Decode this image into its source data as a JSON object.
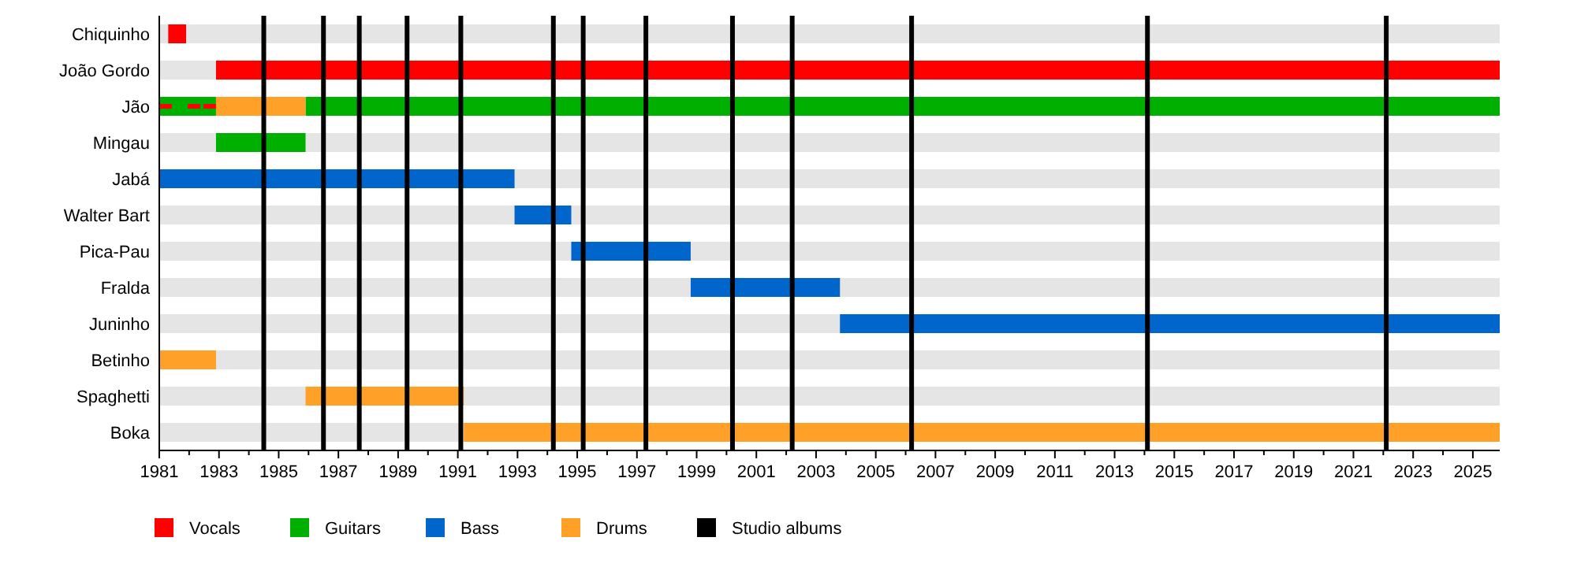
{
  "chart_data": {
    "type": "bar",
    "orientation": "horizontal",
    "categories": [
      "Chiquinho",
      "João Gordo",
      "Jão",
      "Mingau",
      "Jabá",
      "Walter Bart",
      "Pica-Pau",
      "Fralda",
      "Juninho",
      "Betinho",
      "Spaghetti",
      "Boka"
    ],
    "series": [
      {
        "name": "Vocals",
        "color": "#ff0000",
        "values": [
          0.6,
          43.0,
          null,
          null,
          null,
          null,
          null,
          null,
          null,
          null,
          null,
          null
        ],
        "base": [
          1981.3,
          1982.9,
          null,
          null,
          null,
          null,
          null,
          null,
          null,
          null,
          null,
          null
        ]
      },
      {
        "name": "Guitars",
        "color": "#00b000",
        "values": [
          null,
          null,
          1.9,
          3.0,
          null,
          null,
          null,
          null,
          null,
          null,
          null,
          null
        ],
        "base": [
          null,
          null,
          1981,
          1982.9,
          null,
          null,
          null,
          null,
          null,
          null,
          null,
          null
        ]
      },
      {
        "color": "#00b000",
        "values": [
          null,
          null,
          40.0,
          null,
          null,
          null,
          null,
          null,
          null,
          null,
          null,
          null
        ],
        "base": [
          null,
          null,
          1985.9,
          null,
          null,
          null,
          null,
          null,
          null,
          null,
          null,
          null
        ]
      },
      {
        "name": "Bass",
        "color": "#0066cc",
        "values": [
          null,
          null,
          null,
          null,
          11.9,
          1.9,
          4.0,
          5.0,
          22.1,
          null,
          null,
          null
        ],
        "base": [
          null,
          null,
          null,
          null,
          1981,
          1992.9,
          1994.8,
          1998.8,
          2003.8,
          null,
          null,
          null
        ]
      },
      {
        "name": "Drums",
        "color": "#ffa028",
        "values": [
          null,
          null,
          3.0,
          null,
          null,
          null,
          null,
          null,
          null,
          1.9,
          5.3,
          34.7
        ],
        "base": [
          null,
          null,
          1982.9,
          null,
          null,
          null,
          null,
          null,
          null,
          1981,
          1985.9,
          1991.2
        ]
      },
      {
        "color": "#ff0000",
        "line_style": "dashed",
        "values": [
          null,
          null,
          1.9,
          null,
          null,
          null,
          null,
          null,
          null,
          null,
          null,
          null
        ],
        "base": [
          null,
          null,
          1981,
          null,
          null,
          null,
          null,
          null,
          null,
          null,
          null,
          null
        ]
      }
    ],
    "xlim": [
      1981,
      2025.9
    ],
    "xticks": [
      1981,
      {
        "value": 1982,
        "label": null
      },
      1983,
      {
        "value": 1984,
        "label": null
      },
      1985,
      {
        "value": 1986,
        "label": null
      },
      1987,
      {
        "value": 1988,
        "label": null
      },
      1989,
      {
        "value": 1990,
        "label": null
      },
      1991,
      {
        "value": 1992,
        "label": null
      },
      1993,
      {
        "value": 1994,
        "label": null
      },
      1995,
      {
        "value": 1996,
        "label": null
      },
      1997,
      {
        "value": 1998,
        "label": null
      },
      1999,
      {
        "value": 2000,
        "label": null
      },
      2001,
      {
        "value": 2002,
        "label": null
      },
      2003,
      {
        "value": 2004,
        "label": null
      },
      2005,
      {
        "value": 2006,
        "label": null
      },
      2007,
      {
        "value": 2008,
        "label": null
      },
      2009,
      {
        "value": 2010,
        "label": null
      },
      2011,
      {
        "value": 2012,
        "label": null
      },
      2013,
      {
        "value": 2014,
        "label": null
      },
      2015,
      {
        "value": 2016,
        "label": null
      },
      2017,
      {
        "value": 2018,
        "label": null
      },
      2019,
      {
        "value": 2020,
        "label": null
      },
      2021,
      {
        "value": 2022,
        "label": null
      },
      2023,
      {
        "value": 2024,
        "label": null
      },
      2025
    ],
    "ref_lines": [
      {
        "axis": "x",
        "value": 1984.5,
        "color": "#000000"
      },
      {
        "axis": "x",
        "value": 1986.5,
        "color": "#000000"
      },
      {
        "axis": "x",
        "value": 1987.7,
        "color": "#000000"
      },
      {
        "axis": "x",
        "value": 1989.3,
        "color": "#000000"
      },
      {
        "axis": "x",
        "value": 1991.1,
        "color": "#000000"
      },
      {
        "axis": "x",
        "value": 1994.2,
        "color": "#000000"
      },
      {
        "axis": "x",
        "value": 1995.2,
        "color": "#000000"
      },
      {
        "axis": "x",
        "value": 1997.3,
        "color": "#000000"
      },
      {
        "axis": "x",
        "value": 2000.2,
        "color": "#000000"
      },
      {
        "axis": "x",
        "value": 2002.2,
        "color": "#000000"
      },
      {
        "axis": "x",
        "value": 2006.2,
        "color": "#000000"
      },
      {
        "axis": "x",
        "value": 2014.1,
        "color": "#000000"
      },
      {
        "axis": "x",
        "value": 2022.1,
        "color": "#000000"
      }
    ],
    "annotations": [
      "Studio albums"
    ],
    "legend": "bottom left"
  }
}
